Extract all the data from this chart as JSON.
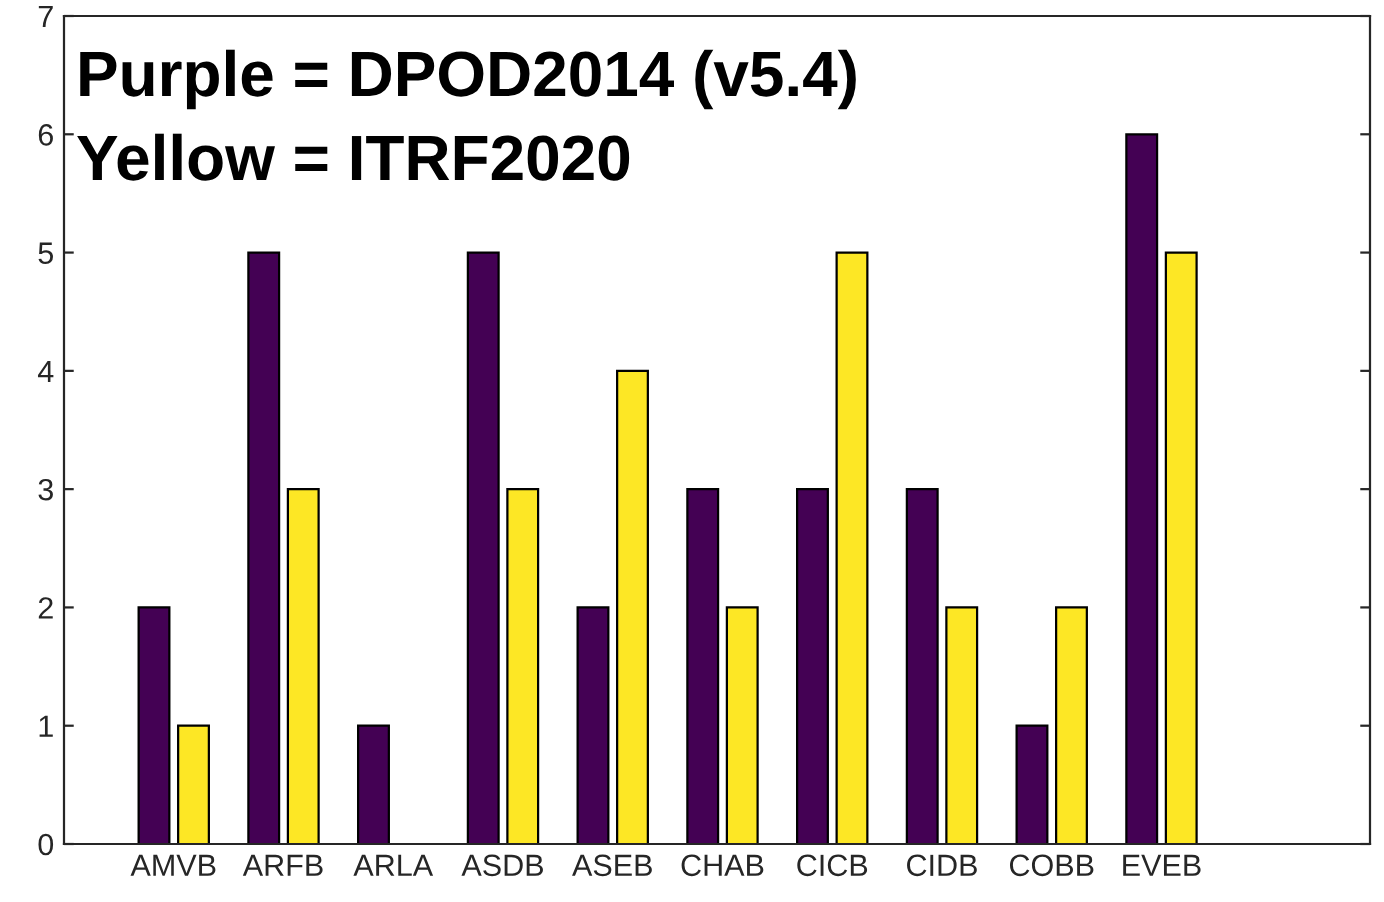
{
  "chart_data": {
    "type": "bar",
    "categories": [
      "AMVB",
      "ARFB",
      "ARLA",
      "ASDB",
      "ASEB",
      "CHAB",
      "CICB",
      "CIDB",
      "COBB",
      "EVEB"
    ],
    "series": [
      {
        "color": "#440154",
        "values": [
          2,
          5,
          1,
          5,
          2,
          3,
          3,
          3,
          1,
          6
        ]
      },
      {
        "color": "#fde725",
        "values": [
          1,
          3,
          null,
          3,
          4,
          2,
          5,
          2,
          2,
          5
        ]
      }
    ],
    "ylim": [
      0,
      7
    ],
    "yticks": [
      0,
      1,
      2,
      3,
      4,
      5,
      6,
      7
    ],
    "grid": false,
    "legend": false,
    "annotations": [
      "Purple = DPOD2014 (v5.4)",
      "Yellow = ITRF2020"
    ]
  }
}
